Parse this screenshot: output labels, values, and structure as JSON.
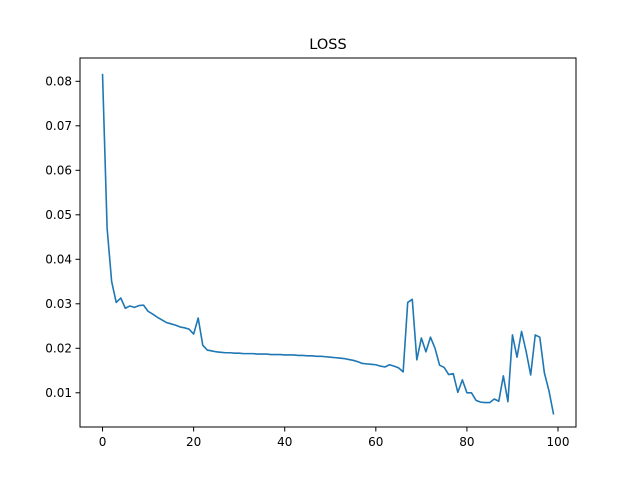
{
  "chart_data": {
    "type": "line",
    "title": "LOSS",
    "xlabel": "",
    "ylabel": "",
    "xlim": [
      -4.95,
      103.95
    ],
    "ylim": [
      0.00231,
      0.08524
    ],
    "xticks": [
      0,
      20,
      40,
      60,
      80,
      100
    ],
    "xtick_labels": [
      "0",
      "20",
      "40",
      "60",
      "80",
      "100"
    ],
    "yticks": [
      0.01,
      0.02,
      0.03,
      0.04,
      0.05,
      0.06,
      0.07,
      0.08
    ],
    "ytick_labels": [
      "0.01",
      "0.02",
      "0.03",
      "0.04",
      "0.05",
      "0.06",
      "0.07",
      "0.08"
    ],
    "grid": false,
    "series": [
      {
        "color": "#1f77b4",
        "x": [
          0,
          1,
          2,
          3,
          4,
          5,
          6,
          7,
          8,
          9,
          10,
          11,
          12,
          13,
          14,
          15,
          16,
          17,
          18,
          19,
          20,
          21,
          22,
          23,
          24,
          25,
          26,
          27,
          28,
          29,
          30,
          31,
          32,
          33,
          34,
          35,
          36,
          37,
          38,
          39,
          40,
          41,
          42,
          43,
          44,
          45,
          46,
          47,
          48,
          49,
          50,
          51,
          52,
          53,
          54,
          55,
          56,
          57,
          58,
          59,
          60,
          61,
          62,
          63,
          64,
          65,
          66,
          67,
          68,
          69,
          70,
          71,
          72,
          73,
          74,
          75,
          76,
          77,
          78,
          79,
          80,
          81,
          82,
          83,
          84,
          85,
          86,
          87,
          88,
          89,
          90,
          91,
          92,
          93,
          94,
          95,
          96,
          97,
          98,
          99
        ],
        "y": [
          0.0815,
          0.047,
          0.035,
          0.0303,
          0.0313,
          0.029,
          0.0295,
          0.0292,
          0.0296,
          0.0297,
          0.0283,
          0.0277,
          0.027,
          0.0264,
          0.0258,
          0.0255,
          0.0252,
          0.0248,
          0.0246,
          0.0243,
          0.0232,
          0.0268,
          0.0207,
          0.0196,
          0.0194,
          0.0192,
          0.0191,
          0.019,
          0.019,
          0.0189,
          0.0189,
          0.0188,
          0.0188,
          0.0188,
          0.0187,
          0.0187,
          0.0187,
          0.0186,
          0.0186,
          0.0186,
          0.0185,
          0.0185,
          0.0185,
          0.0184,
          0.0184,
          0.0183,
          0.0183,
          0.0182,
          0.0182,
          0.0181,
          0.018,
          0.0179,
          0.0178,
          0.0177,
          0.0175,
          0.0173,
          0.017,
          0.0166,
          0.0165,
          0.0164,
          0.0163,
          0.016,
          0.0158,
          0.0163,
          0.016,
          0.0156,
          0.0147,
          0.0303,
          0.031,
          0.0174,
          0.0223,
          0.0192,
          0.0225,
          0.02,
          0.0162,
          0.0157,
          0.0141,
          0.0143,
          0.0101,
          0.0129,
          0.01,
          0.01,
          0.0083,
          0.0079,
          0.0078,
          0.0078,
          0.0086,
          0.0081,
          0.0138,
          0.008,
          0.023,
          0.018,
          0.0238,
          0.0193,
          0.014,
          0.023,
          0.0225,
          0.0145,
          0.0105,
          0.0053
        ]
      }
    ]
  }
}
